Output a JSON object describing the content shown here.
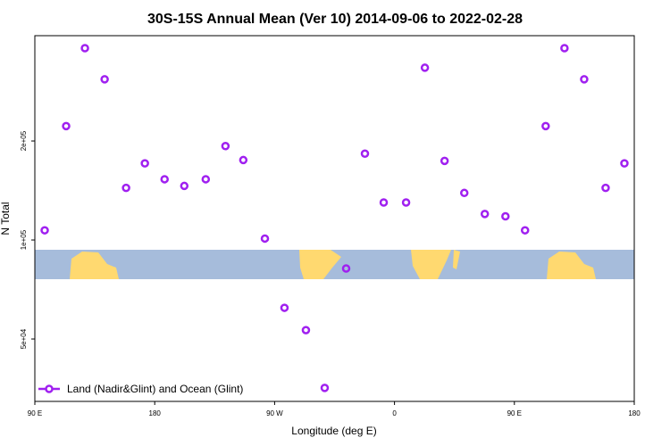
{
  "chart_data": {
    "type": "scatter",
    "title": "30S-15S Annual Mean (Ver 10)   2014-09-06 to 2022-02-28",
    "x_label": "Longitude (deg E)",
    "y_label": "N Total",
    "log_y": true,
    "legend": "bottom-left",
    "xlim": [
      90,
      540
    ],
    "ylim": [
      32300,
      418000
    ],
    "xticks": [
      {
        "value": 90,
        "label": "90 E"
      },
      {
        "value": 180,
        "label": "180"
      },
      {
        "value": 270,
        "label": "90 W"
      },
      {
        "value": 360,
        "label": "0"
      },
      {
        "value": 450,
        "label": "90 E"
      },
      {
        "value": 540,
        "label": "180"
      }
    ],
    "yticks": [
      {
        "value": 50000,
        "label": "5e+04"
      },
      {
        "value": 100000,
        "label": "1e+05"
      },
      {
        "value": 200000,
        "label": "2e+05"
      }
    ],
    "series": [
      {
        "name": "Land (Nadir&Glint) and Ocean (Glint)",
        "color": "#a020f0",
        "x": [
          97.4,
          113.5,
          127.6,
          142.4,
          158.5,
          172.6,
          187.4,
          202.2,
          218.3,
          233.1,
          246.5,
          262.7,
          277.4,
          293.5,
          307.6,
          323.7,
          337.8,
          351.9,
          368.7,
          382.8,
          397.6,
          412.4,
          427.8,
          443.3,
          458.0,
          473.5,
          487.6,
          502.4,
          518.5,
          532.6
        ],
        "values": [
          107000,
          222000,
          383000,
          308000,
          144000,
          171000,
          153000,
          146000,
          153000,
          193000,
          175000,
          101000,
          62200,
          53200,
          35500,
          81900,
          183000,
          130000,
          130000,
          334000,
          174000,
          139000,
          120000,
          118000,
          107000,
          222000,
          383000,
          308000,
          144000,
          171000
        ]
      }
    ]
  }
}
